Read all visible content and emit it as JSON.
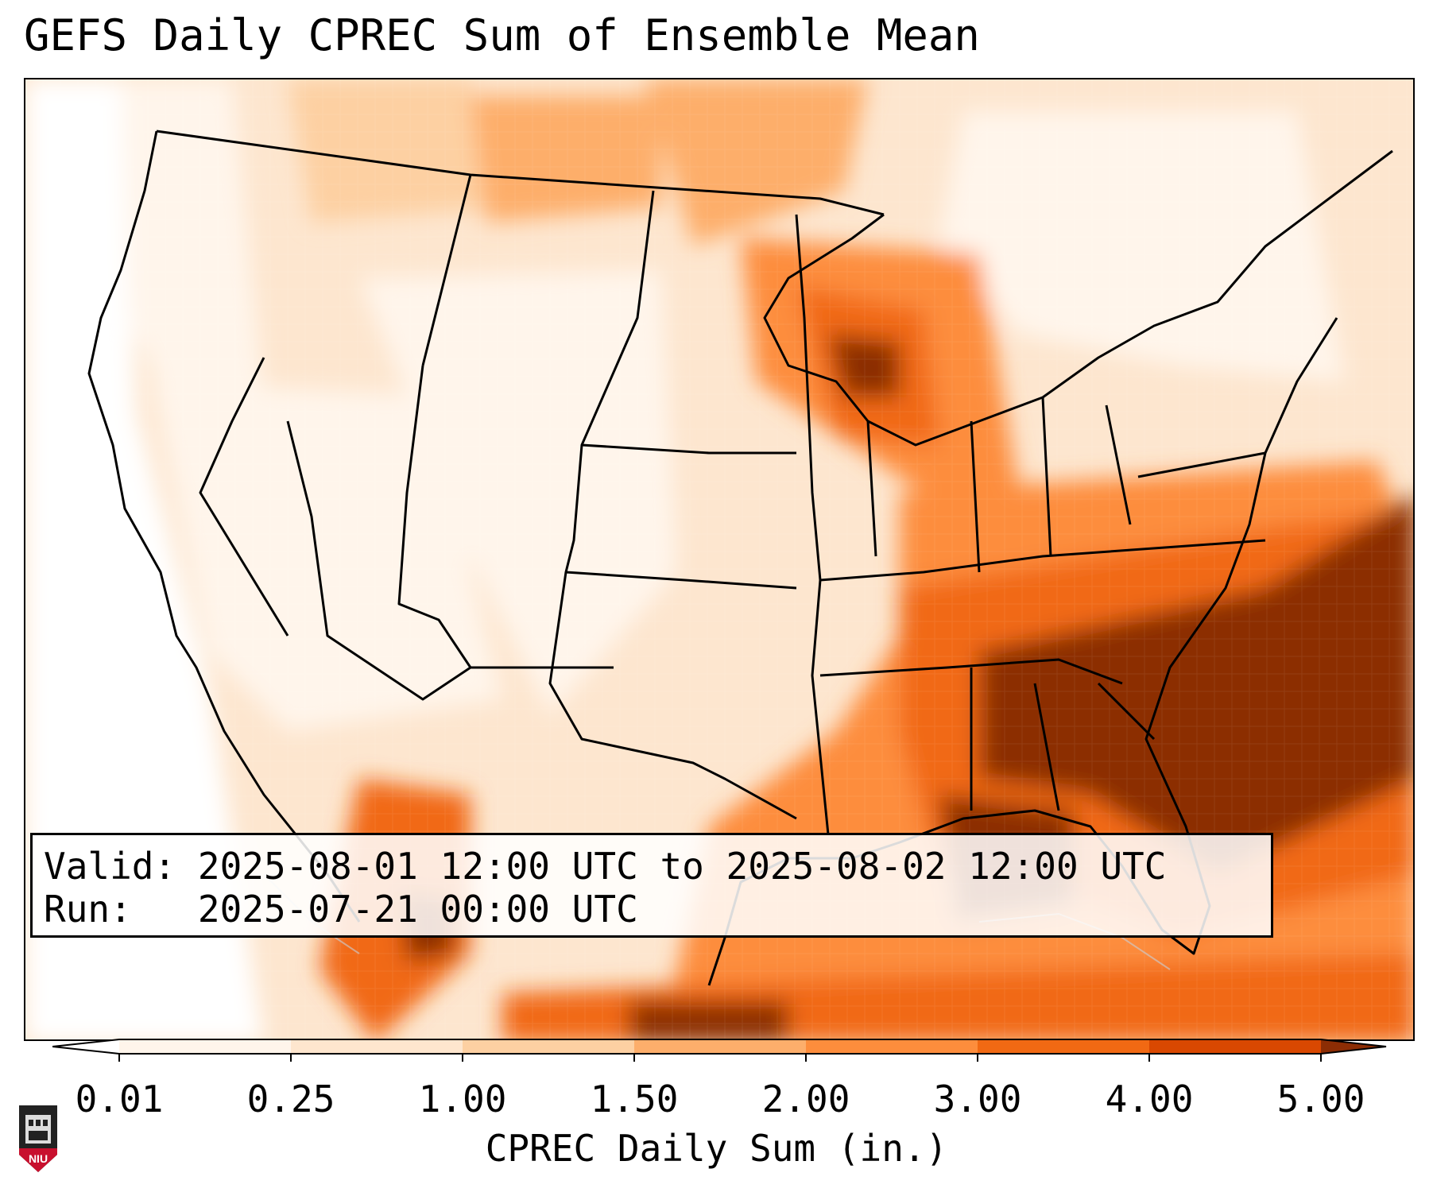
{
  "title": "GEFS Daily CPREC Sum of Ensemble Mean",
  "info": {
    "valid_label": "Valid:",
    "valid_value": "2025-08-01 12:00 UTC to 2025-08-02 12:00 UTC",
    "run_label": "Run:",
    "run_value": "2025-07-21 00:00 UTC"
  },
  "colorbar": {
    "label": "CPREC Daily Sum (in.)",
    "ticks": [
      "0.01",
      "0.25",
      "1.00",
      "1.50",
      "2.00",
      "3.00",
      "4.00",
      "5.00"
    ],
    "colors": [
      "#fff5eb",
      "#fee6ce",
      "#fdd0a2",
      "#fdae6b",
      "#fd8d3c",
      "#f16913",
      "#d94801",
      "#8c2d04"
    ]
  },
  "logo": {
    "text": "NIU"
  }
}
